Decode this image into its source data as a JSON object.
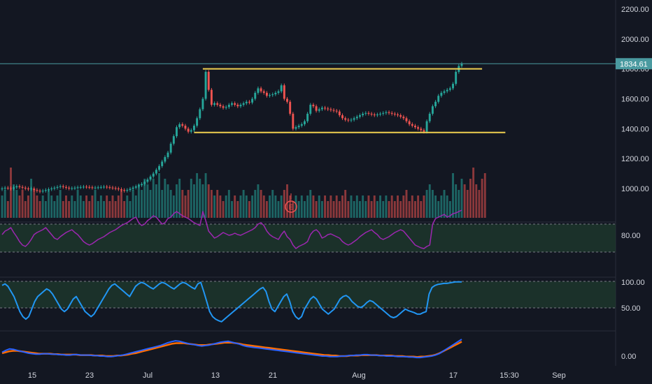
{
  "colors": {
    "background": "#131722",
    "up": "#26a69a",
    "down": "#ef5350",
    "channel_line": "#f0d050",
    "price_line": "#4a9aa0",
    "rsi": "#9c27b0",
    "stoch": "#2196f3",
    "macd_blue": "#2962ff",
    "macd_orange": "#ff6d00",
    "band_fill": "#1f3b2d"
  },
  "last_price_label": "1834.61",
  "earnings_marker": "E",
  "time_axis": [
    "15",
    "23",
    "Jul",
    "13",
    "21",
    "Aug",
    "17",
    "15:30",
    "Sep"
  ],
  "chart_data": [
    {
      "type": "candlestick",
      "panel": "price",
      "yticks": [
        "2200.00",
        "2000.00",
        "1800.00",
        "1600.00",
        "1400.00",
        "1200.00",
        "1000.00"
      ],
      "ytick_values": [
        2200,
        2000,
        1800,
        1600,
        1400,
        1200,
        1000
      ],
      "ylim": [
        800,
        2280
      ],
      "current_price": 1834.61,
      "channel_lines": [
        {
          "from_bar": 69,
          "to_bar": 165,
          "value": 1800
        },
        {
          "from_bar": 66,
          "to_bar": 173,
          "value": 1375
        }
      ],
      "series": [
        {
          "name": "",
          "values": [
            1000,
            1005,
            1002,
            998,
            1008,
            1015,
            1010,
            1005,
            1000,
            995,
            1000,
            990,
            985,
            980,
            985,
            990,
            995,
            1000,
            1005,
            1010,
            1015,
            1010,
            1005,
            1000,
            1002,
            1005,
            1008,
            1010,
            1012,
            1010,
            1008,
            1005,
            1006,
            1008,
            1010,
            1012,
            1009,
            1006,
            1003,
            1000,
            995,
            990,
            985,
            990,
            998,
            1006,
            1014,
            1022,
            1030,
            1045,
            1060,
            1080,
            1100,
            1125,
            1150,
            1180,
            1210,
            1240,
            1300,
            1350,
            1410,
            1430,
            1420,
            1400,
            1380,
            1390,
            1420,
            1470,
            1530,
            1600,
            1780,
            1660,
            1560,
            1570,
            1560,
            1550,
            1540,
            1545,
            1560,
            1570,
            1560,
            1550,
            1560,
            1570,
            1580,
            1575,
            1600,
            1640,
            1670,
            1650,
            1640,
            1620,
            1625,
            1630,
            1640,
            1650,
            1690,
            1600,
            1580,
            1500,
            1400,
            1410,
            1420,
            1430,
            1450,
            1500,
            1560,
            1550,
            1520,
            1530,
            1540,
            1535,
            1530,
            1525,
            1520,
            1515,
            1490,
            1470,
            1460,
            1455,
            1460,
            1470,
            1480,
            1490,
            1500,
            1505,
            1500,
            1495,
            1490,
            1495,
            1500,
            1505,
            1510,
            1505,
            1500,
            1495,
            1490,
            1480,
            1470,
            1450,
            1430,
            1420,
            1410,
            1400,
            1390,
            1380,
            1450,
            1500,
            1550,
            1580,
            1620,
            1640,
            1650,
            1660,
            1670,
            1700,
            1780,
            1820,
            1834.61
          ]
        }
      ]
    },
    {
      "type": "bar",
      "panel": "volume",
      "series": [
        {
          "name": "",
          "values": [
            0.4,
            0.5,
            0.3,
            0.9,
            0.6,
            0.5,
            0.4,
            0.5,
            0.3,
            0.4,
            0.7,
            0.5,
            0.4,
            0.3,
            0.4,
            0.3,
            0.5,
            0.4,
            0.3,
            0.4,
            0.5,
            0.3,
            0.4,
            0.3,
            0.4,
            0.3,
            0.5,
            0.4,
            0.3,
            0.4,
            0.3,
            0.4,
            0.5,
            0.3,
            0.4,
            0.3,
            0.4,
            0.3,
            0.4,
            0.3,
            0.4,
            0.5,
            0.3,
            0.4,
            0.3,
            0.5,
            0.4,
            0.6,
            0.5,
            0.7,
            0.6,
            0.5,
            0.7,
            0.6,
            0.8,
            0.5,
            0.7,
            0.6,
            0.5,
            0.4,
            0.6,
            0.7,
            0.5,
            0.4,
            0.5,
            0.7,
            0.6,
            0.8,
            0.7,
            0.6,
            0.8,
            0.6,
            0.5,
            0.4,
            0.5,
            0.4,
            0.3,
            0.4,
            0.5,
            0.3,
            0.4,
            0.3,
            0.4,
            0.5,
            0.4,
            0.3,
            0.4,
            0.5,
            0.6,
            0.5,
            0.4,
            0.3,
            0.4,
            0.5,
            0.4,
            0.3,
            0.4,
            0.5,
            0.6,
            0.4,
            0.3,
            0.4,
            0.3,
            0.4,
            0.3,
            0.4,
            0.5,
            0.4,
            0.3,
            0.4,
            0.3,
            0.4,
            0.3,
            0.4,
            0.3,
            0.4,
            0.3,
            0.4,
            0.5,
            0.3,
            0.4,
            0.3,
            0.4,
            0.3,
            0.4,
            0.3,
            0.4,
            0.3,
            0.4,
            0.3,
            0.4,
            0.3,
            0.4,
            0.3,
            0.4,
            0.3,
            0.4,
            0.3,
            0.4,
            0.5,
            0.3,
            0.4,
            0.3,
            0.4,
            0.3,
            0.4,
            0.5,
            0.6,
            0.5,
            0.4,
            0.3,
            0.4,
            0.5,
            0.4,
            0.3,
            0.8,
            0.6,
            0.5,
            0.7,
            0.6,
            0.5,
            0.7,
            0.9,
            0.6,
            0.5,
            0.7,
            0.8
          ]
        }
      ]
    },
    {
      "type": "line",
      "panel": "rsi",
      "yticks": [
        "80.00"
      ],
      "band": [
        30,
        70
      ],
      "series": [
        {
          "name": "",
          "values": [
            55,
            60,
            62,
            65,
            58,
            52,
            45,
            40,
            38,
            42,
            48,
            55,
            58,
            60,
            62,
            65,
            60,
            55,
            50,
            48,
            52,
            55,
            58,
            60,
            62,
            58,
            55,
            50,
            45,
            42,
            40,
            42,
            45,
            48,
            50,
            52,
            55,
            58,
            60,
            62,
            65,
            68,
            70,
            72,
            75,
            78,
            80,
            72,
            68,
            70,
            75,
            78,
            82,
            80,
            75,
            70,
            72,
            78,
            80,
            85,
            88,
            85,
            82,
            80,
            78,
            75,
            72,
            70,
            68,
            88,
            75,
            60,
            55,
            50,
            52,
            55,
            58,
            56,
            54,
            55,
            57,
            55,
            54,
            56,
            58,
            60,
            62,
            65,
            70,
            72,
            68,
            60,
            55,
            52,
            50,
            48,
            55,
            60,
            52,
            48,
            40,
            35,
            38,
            40,
            42,
            45,
            55,
            60,
            62,
            58,
            50,
            52,
            55,
            56,
            54,
            52,
            50,
            45,
            42,
            40,
            42,
            45,
            48,
            52,
            55,
            58,
            60,
            62,
            58,
            55,
            50,
            48,
            50,
            52,
            55,
            58,
            60,
            62,
            60,
            55,
            50,
            45,
            40,
            38,
            36,
            35,
            38,
            40,
            70,
            78,
            80,
            82,
            84,
            80,
            82,
            85,
            86,
            88,
            90
          ]
        }
      ]
    },
    {
      "type": "line",
      "panel": "stochastic",
      "yticks": [
        "100.00",
        "50.00"
      ],
      "band": [
        50,
        100
      ],
      "series": [
        {
          "name": "",
          "values": [
            92,
            95,
            90,
            80,
            70,
            55,
            40,
            30,
            25,
            30,
            45,
            60,
            70,
            75,
            80,
            85,
            82,
            75,
            65,
            55,
            45,
            40,
            45,
            55,
            65,
            70,
            60,
            50,
            40,
            35,
            30,
            35,
            45,
            55,
            65,
            75,
            85,
            92,
            95,
            90,
            85,
            80,
            75,
            70,
            80,
            90,
            95,
            98,
            96,
            92,
            88,
            85,
            90,
            95,
            98,
            96,
            92,
            88,
            85,
            90,
            95,
            98,
            96,
            92,
            88,
            85,
            95,
            98,
            80,
            60,
            40,
            30,
            25,
            22,
            20,
            25,
            30,
            35,
            40,
            45,
            50,
            55,
            60,
            65,
            70,
            75,
            80,
            85,
            88,
            80,
            60,
            45,
            40,
            50,
            60,
            70,
            75,
            60,
            40,
            30,
            25,
            30,
            45,
            55,
            65,
            70,
            65,
            55,
            45,
            40,
            35,
            40,
            45,
            55,
            65,
            70,
            72,
            68,
            60,
            55,
            50,
            48,
            52,
            58,
            62,
            60,
            55,
            50,
            45,
            40,
            35,
            30,
            28,
            30,
            35,
            40,
            45,
            42,
            40,
            38,
            35,
            35,
            38,
            40,
            75,
            88,
            92,
            94,
            95,
            96,
            96,
            97,
            98,
            99,
            99,
            99
          ]
        }
      ]
    },
    {
      "type": "line",
      "panel": "macd",
      "yticks": [
        "0.00"
      ],
      "series": [
        {
          "name": "",
          "values": [
            8,
            12,
            15,
            14,
            12,
            10,
            8,
            6,
            5,
            4,
            4,
            5,
            5,
            4,
            4,
            3,
            3,
            2,
            2,
            3,
            3,
            2,
            2,
            2,
            1,
            1,
            0,
            0,
            -1,
            -1,
            0,
            1,
            2,
            4,
            6,
            8,
            10,
            12,
            14,
            16,
            18,
            20,
            22,
            25,
            28,
            30,
            32,
            31,
            29,
            27,
            25,
            24,
            22,
            21,
            22,
            23,
            25,
            27,
            29,
            30,
            31,
            29,
            27,
            25,
            22,
            20,
            19,
            18,
            17,
            16,
            15,
            14,
            13,
            12,
            11,
            10,
            9,
            8,
            7,
            6,
            5,
            4,
            3,
            2,
            1,
            0,
            0,
            -1,
            -1,
            -1,
            0,
            0,
            1,
            1,
            2,
            2,
            3,
            3,
            2,
            2,
            1,
            1,
            0,
            0,
            0,
            -1,
            -1,
            -1,
            -2,
            -2,
            -3,
            -3,
            -2,
            -1,
            0,
            2,
            5,
            10,
            15,
            20,
            25,
            30,
            35
          ]
        },
        {
          "name": "",
          "values": [
            6,
            8,
            10,
            11,
            11,
            10,
            9,
            8,
            7,
            6,
            5,
            5,
            5,
            5,
            4,
            4,
            3,
            3,
            3,
            3,
            3,
            2,
            2,
            2,
            2,
            1,
            1,
            1,
            0,
            0,
            0,
            1,
            1,
            2,
            3,
            5,
            6,
            8,
            10,
            12,
            14,
            16,
            18,
            20,
            22,
            24,
            26,
            27,
            27,
            27,
            26,
            25,
            24,
            23,
            23,
            23,
            24,
            25,
            26,
            27,
            28,
            28,
            28,
            27,
            26,
            24,
            23,
            22,
            21,
            20,
            19,
            18,
            17,
            16,
            15,
            14,
            13,
            12,
            11,
            10,
            9,
            8,
            7,
            6,
            5,
            4,
            3,
            2,
            2,
            1,
            1,
            0,
            0,
            0,
            1,
            1,
            1,
            2,
            2,
            2,
            2,
            2,
            1,
            1,
            1,
            1,
            0,
            0,
            0,
            -1,
            -1,
            -1,
            -2,
            -1,
            -1,
            0,
            1,
            3,
            6,
            10,
            14,
            18,
            22,
            26,
            30
          ]
        }
      ]
    }
  ]
}
